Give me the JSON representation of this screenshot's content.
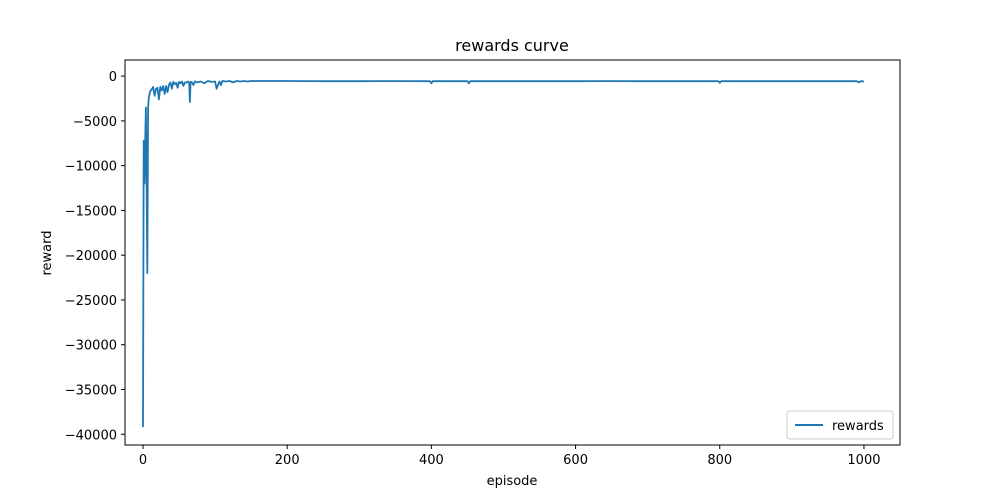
{
  "chart_data": {
    "type": "line",
    "title": "rewards curve",
    "xlabel": "episode",
    "ylabel": "reward",
    "xlim": [
      -25,
      1050
    ],
    "ylim": [
      -41200,
      1800
    ],
    "xticks": [
      0,
      200,
      400,
      600,
      800,
      1000
    ],
    "xtick_labels": [
      "0",
      "200",
      "400",
      "600",
      "800",
      "1000"
    ],
    "yticks": [
      0,
      -5000,
      -10000,
      -15000,
      -20000,
      -25000,
      -30000,
      -35000,
      -40000
    ],
    "ytick_labels": [
      "0",
      "−5000",
      "−10000",
      "−15000",
      "−20000",
      "−25000",
      "−30000",
      "−35000",
      "−40000"
    ],
    "grid": false,
    "legend_position": "lower-right",
    "series": [
      {
        "name": "rewards",
        "color": "#1f77b4",
        "x": [
          0,
          1,
          2,
          3,
          4,
          5,
          6,
          7,
          8,
          10,
          12,
          14,
          16,
          18,
          20,
          22,
          24,
          26,
          28,
          30,
          32,
          34,
          36,
          38,
          40,
          42,
          44,
          46,
          48,
          50,
          52,
          54,
          56,
          58,
          60,
          62,
          64,
          65,
          66,
          68,
          70,
          72,
          75,
          80,
          85,
          90,
          95,
          100,
          102,
          104,
          106,
          108,
          110,
          115,
          120,
          125,
          130,
          135,
          140,
          145,
          150,
          160,
          180,
          200,
          220,
          250,
          300,
          350,
          398,
          400,
          402,
          450,
          452,
          454,
          500,
          550,
          600,
          650,
          700,
          750,
          798,
          800,
          802,
          850,
          900,
          950,
          990,
          993,
          996,
          1000
        ],
        "y": [
          -39200,
          -7200,
          -12000,
          -7300,
          -3500,
          -12000,
          -22000,
          -3600,
          -2400,
          -1700,
          -1500,
          -1200,
          -2200,
          -1400,
          -1300,
          -2600,
          -1200,
          -1600,
          -1100,
          -2000,
          -1100,
          -1800,
          -950,
          -700,
          -1400,
          -650,
          -900,
          -750,
          -1300,
          -650,
          -800,
          -600,
          -1100,
          -700,
          -750,
          -600,
          -700,
          -2900,
          -650,
          -700,
          -1000,
          -600,
          -700,
          -600,
          -800,
          -550,
          -650,
          -600,
          -1400,
          -1000,
          -600,
          -1000,
          -550,
          -600,
          -550,
          -700,
          -550,
          -600,
          -550,
          -600,
          -550,
          -550,
          -550,
          -550,
          -560,
          -570,
          -570,
          -560,
          -570,
          -800,
          -560,
          -570,
          -800,
          -560,
          -570,
          -570,
          -570,
          -560,
          -570,
          -570,
          -560,
          -750,
          -570,
          -570,
          -570,
          -570,
          -570,
          -700,
          -560,
          -600
        ]
      }
    ]
  }
}
